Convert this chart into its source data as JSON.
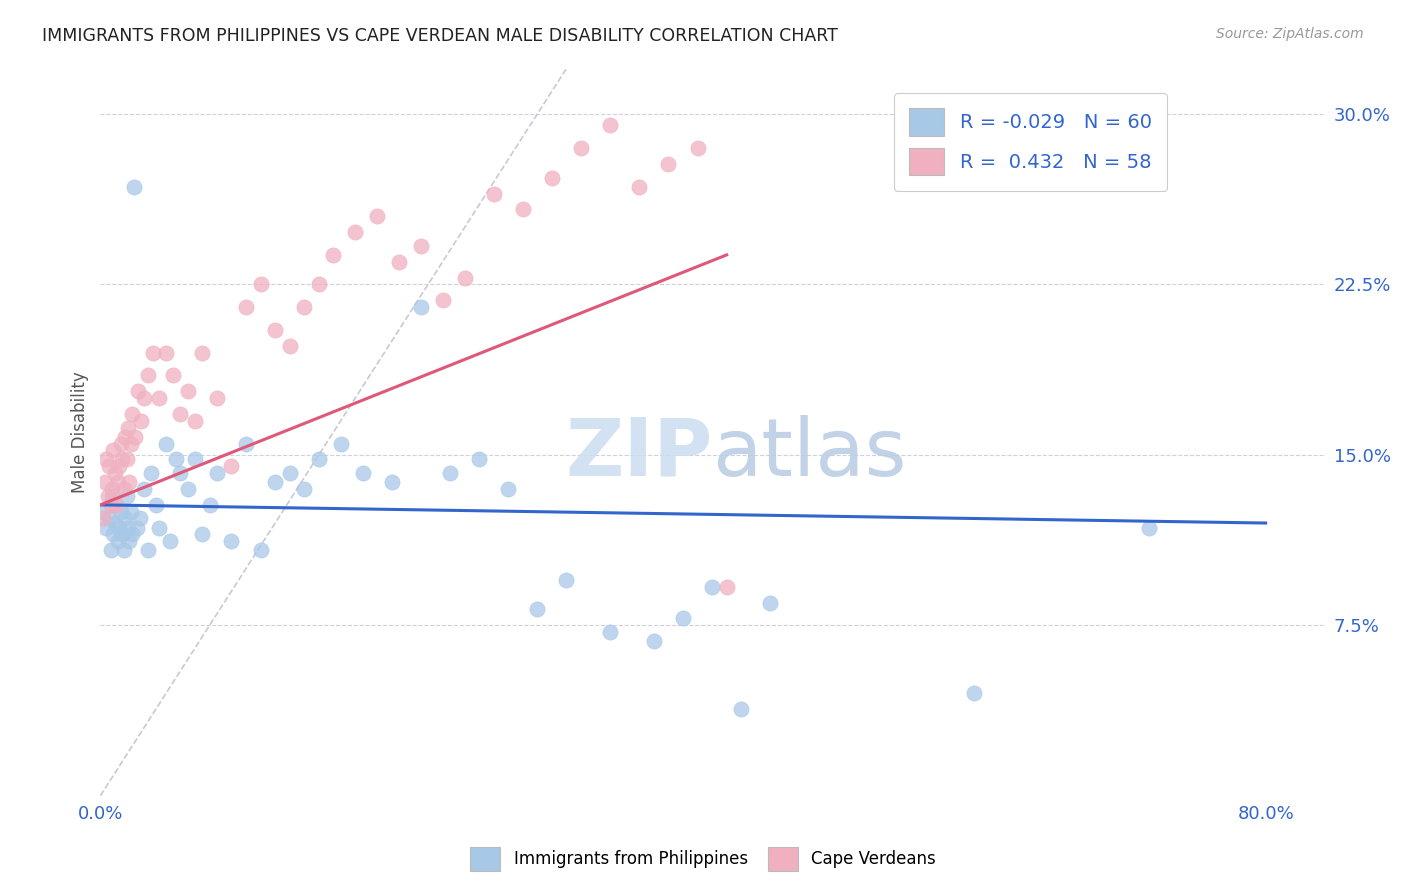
{
  "title": "IMMIGRANTS FROM PHILIPPINES VS CAPE VERDEAN MALE DISABILITY CORRELATION CHART",
  "source": "Source: ZipAtlas.com",
  "ylabel": "Male Disability",
  "yticks": [
    0.075,
    0.15,
    0.225,
    0.3
  ],
  "ytick_labels": [
    "7.5%",
    "15.0%",
    "22.5%",
    "30.0%"
  ],
  "xlim": [
    0.0,
    0.84
  ],
  "ylim": [
    0.0,
    0.32
  ],
  "legend_r1": "R = -0.029",
  "legend_n1": "N = 60",
  "legend_r2": "R =  0.432",
  "legend_n2": "N = 58",
  "color_blue": "#a8c8e8",
  "color_pink": "#f0b0c0",
  "color_blue_line": "#3366cc",
  "color_pink_line": "#e05878",
  "color_diag": "#c8c8d8",
  "background": "#ffffff",
  "philippines_x": [
    0.002,
    0.004,
    0.006,
    0.007,
    0.008,
    0.009,
    0.01,
    0.011,
    0.012,
    0.013,
    0.014,
    0.015,
    0.016,
    0.017,
    0.018,
    0.019,
    0.02,
    0.021,
    0.022,
    0.023,
    0.025,
    0.027,
    0.03,
    0.033,
    0.035,
    0.038,
    0.04,
    0.045,
    0.048,
    0.052,
    0.055,
    0.06,
    0.065,
    0.07,
    0.075,
    0.08,
    0.09,
    0.1,
    0.11,
    0.12,
    0.13,
    0.14,
    0.15,
    0.165,
    0.18,
    0.2,
    0.22,
    0.24,
    0.26,
    0.28,
    0.3,
    0.32,
    0.35,
    0.38,
    0.4,
    0.42,
    0.44,
    0.46,
    0.6,
    0.72
  ],
  "philippines_y": [
    0.125,
    0.118,
    0.122,
    0.108,
    0.132,
    0.115,
    0.12,
    0.128,
    0.112,
    0.118,
    0.125,
    0.115,
    0.108,
    0.122,
    0.132,
    0.118,
    0.112,
    0.125,
    0.115,
    0.268,
    0.118,
    0.122,
    0.135,
    0.108,
    0.142,
    0.128,
    0.118,
    0.155,
    0.112,
    0.148,
    0.142,
    0.135,
    0.148,
    0.115,
    0.128,
    0.142,
    0.112,
    0.155,
    0.108,
    0.138,
    0.142,
    0.135,
    0.148,
    0.155,
    0.142,
    0.138,
    0.215,
    0.142,
    0.148,
    0.135,
    0.082,
    0.095,
    0.072,
    0.068,
    0.078,
    0.092,
    0.038,
    0.085,
    0.045,
    0.118
  ],
  "capeverdean_x": [
    0.002,
    0.003,
    0.004,
    0.005,
    0.006,
    0.007,
    0.008,
    0.009,
    0.01,
    0.011,
    0.012,
    0.013,
    0.014,
    0.015,
    0.016,
    0.017,
    0.018,
    0.019,
    0.02,
    0.021,
    0.022,
    0.024,
    0.026,
    0.028,
    0.03,
    0.033,
    0.036,
    0.04,
    0.045,
    0.05,
    0.055,
    0.06,
    0.065,
    0.07,
    0.08,
    0.09,
    0.1,
    0.11,
    0.12,
    0.13,
    0.14,
    0.15,
    0.16,
    0.175,
    0.19,
    0.205,
    0.22,
    0.235,
    0.25,
    0.27,
    0.29,
    0.31,
    0.33,
    0.35,
    0.37,
    0.39,
    0.41,
    0.43
  ],
  "capeverdean_y": [
    0.122,
    0.138,
    0.148,
    0.132,
    0.145,
    0.128,
    0.135,
    0.152,
    0.142,
    0.128,
    0.138,
    0.145,
    0.155,
    0.148,
    0.135,
    0.158,
    0.148,
    0.162,
    0.138,
    0.155,
    0.168,
    0.158,
    0.178,
    0.165,
    0.175,
    0.185,
    0.195,
    0.175,
    0.195,
    0.185,
    0.168,
    0.178,
    0.165,
    0.195,
    0.175,
    0.145,
    0.215,
    0.225,
    0.205,
    0.198,
    0.215,
    0.225,
    0.238,
    0.248,
    0.255,
    0.235,
    0.242,
    0.218,
    0.228,
    0.265,
    0.258,
    0.272,
    0.285,
    0.295,
    0.268,
    0.278,
    0.285,
    0.092
  ],
  "blue_line_x": [
    0.0,
    0.8
  ],
  "blue_line_y": [
    0.128,
    0.12
  ],
  "pink_line_x": [
    0.0,
    0.43
  ],
  "pink_line_y": [
    0.128,
    0.238
  ],
  "diag_line_x": [
    0.0,
    0.32
  ],
  "diag_line_y": [
    0.0,
    0.32
  ]
}
